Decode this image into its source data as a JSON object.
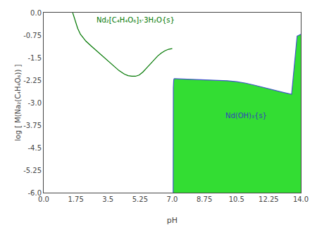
{
  "chart_data": {
    "type": "line",
    "xlabel": "pH",
    "ylabel": "log [ M(Na₂(C₄H₄O₆)) ]",
    "xlim": [
      0.0,
      14.0
    ],
    "ylim": [
      -6.0,
      0.0
    ],
    "xticks": [
      {
        "value": 0.0,
        "label": "0.0"
      },
      1.75,
      3.5,
      5.25,
      {
        "value": 7.0,
        "label": "7.0"
      },
      8.75,
      10.5,
      12.25,
      {
        "value": 14.0,
        "label": "14.0"
      }
    ],
    "yticks": [
      {
        "value": 0.0,
        "label": "0.0"
      },
      -0.75,
      -1.5,
      -2.25,
      {
        "value": -3.0,
        "label": "-3.0"
      },
      -3.75,
      -4.5,
      -5.25,
      {
        "value": -6.0,
        "label": "-6.0"
      }
    ],
    "grid": false,
    "series": [
      {
        "type": "area",
        "color": "#33dd33",
        "x": [
          7.05,
          7.05,
          7.06,
          7.08,
          7.1,
          7.1,
          7.5,
          8.0,
          8.5,
          9.0,
          9.5,
          10.0,
          10.5,
          11.0,
          11.5,
          12.0,
          12.5,
          13.0,
          13.5,
          13.8,
          14.0,
          14.0,
          7.05
        ],
        "values": [
          -6.0,
          -3.9,
          -2.5,
          -2.25,
          -2.2,
          -2.2,
          -2.21,
          -2.22,
          -2.23,
          -2.24,
          -2.25,
          -2.27,
          -2.3,
          -2.35,
          -2.42,
          -2.5,
          -2.58,
          -2.65,
          -2.72,
          -0.78,
          -0.72,
          -6.0,
          -6.0
        ]
      },
      {
        "type": "line",
        "color": "#007700",
        "x": [
          1.58,
          1.62,
          1.7,
          1.85,
          2.0,
          2.3,
          2.6,
          2.9,
          3.2,
          3.5,
          3.8,
          4.1,
          4.4,
          4.6,
          4.8,
          5.0,
          5.2,
          5.4,
          5.6,
          5.8,
          6.0,
          6.2,
          6.4,
          6.6,
          6.8,
          7.0
        ],
        "values": [
          0.0,
          -0.08,
          -0.25,
          -0.52,
          -0.72,
          -0.95,
          -1.12,
          -1.28,
          -1.45,
          -1.62,
          -1.78,
          -1.93,
          -2.05,
          -2.1,
          -2.12,
          -2.12,
          -2.08,
          -1.98,
          -1.85,
          -1.72,
          -1.58,
          -1.45,
          -1.35,
          -1.27,
          -1.22,
          -1.2
        ]
      },
      {
        "type": "line",
        "color": "#4455cc",
        "x": [
          7.05,
          7.05,
          7.06,
          7.08,
          7.1
        ],
        "values": [
          -6.0,
          -3.9,
          -2.5,
          -2.25,
          -2.2
        ]
      },
      {
        "type": "line",
        "color": "#4455cc",
        "x": [
          7.1,
          7.5,
          8.0,
          8.5,
          9.0,
          9.5,
          10.0,
          10.5,
          11.0,
          11.5,
          12.0,
          12.5,
          13.0,
          13.5,
          13.8,
          14.0
        ],
        "values": [
          -2.2,
          -2.21,
          -2.22,
          -2.23,
          -2.24,
          -2.25,
          -2.27,
          -2.3,
          -2.35,
          -2.42,
          -2.5,
          -2.58,
          -2.65,
          -2.72,
          -0.78,
          -0.72
        ]
      }
    ],
    "annotations": [
      {
        "text": "Nd₂[C₄H₄O₆]₃·3H₂O{s}",
        "x": 2.8,
        "y": -0.42,
        "color": "#007700"
      },
      {
        "text": "Nd(OH)₃{s}",
        "x": 9.8,
        "y": -3.6,
        "color": "#3344bb"
      }
    ]
  }
}
